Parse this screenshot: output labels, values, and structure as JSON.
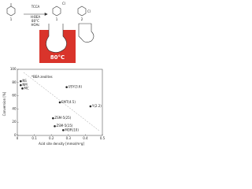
{
  "scheme": {
    "reactant": "1",
    "product_a": "1",
    "product_b": "2",
    "reagent": "TCCA",
    "catalyst": "H-BEA",
    "temperature": "80°C",
    "solvent": "HOAc",
    "bath_temperature": "80°C",
    "substituent_a": "Cl",
    "substituent_b": "Cl"
  },
  "chart_data": {
    "type": "scatter",
    "xlabel": "Acid site density [mmol/m²g]",
    "ylabel": "Conversion [%]",
    "annotation": "*BEA zeolites",
    "x": [
      0.02,
      0.02,
      0.03,
      0.29,
      0.25,
      0.43,
      0.21,
      0.22,
      0.27
    ],
    "values": [
      82,
      76,
      71,
      73,
      50,
      44,
      26,
      14,
      8
    ],
    "point_labels": [
      "NS",
      "NM",
      "MC",
      "USY(3.6)",
      "EMT(4.5)",
      "Y(2.2)",
      "ZSM-5(25)",
      "ZSM-5(15)",
      "MOR(10)"
    ],
    "colors": [
      "#222",
      "#222",
      "#222",
      "#222",
      "#222",
      "#222",
      "#222",
      "#222",
      "#222"
    ],
    "xlim": [
      0,
      0.5
    ],
    "xticks": [
      0,
      0.1,
      0.2,
      0.3,
      0.4,
      0.5
    ],
    "ylim": [
      0,
      100
    ],
    "yticks": [
      0,
      20,
      40,
      60,
      80,
      100
    ]
  }
}
